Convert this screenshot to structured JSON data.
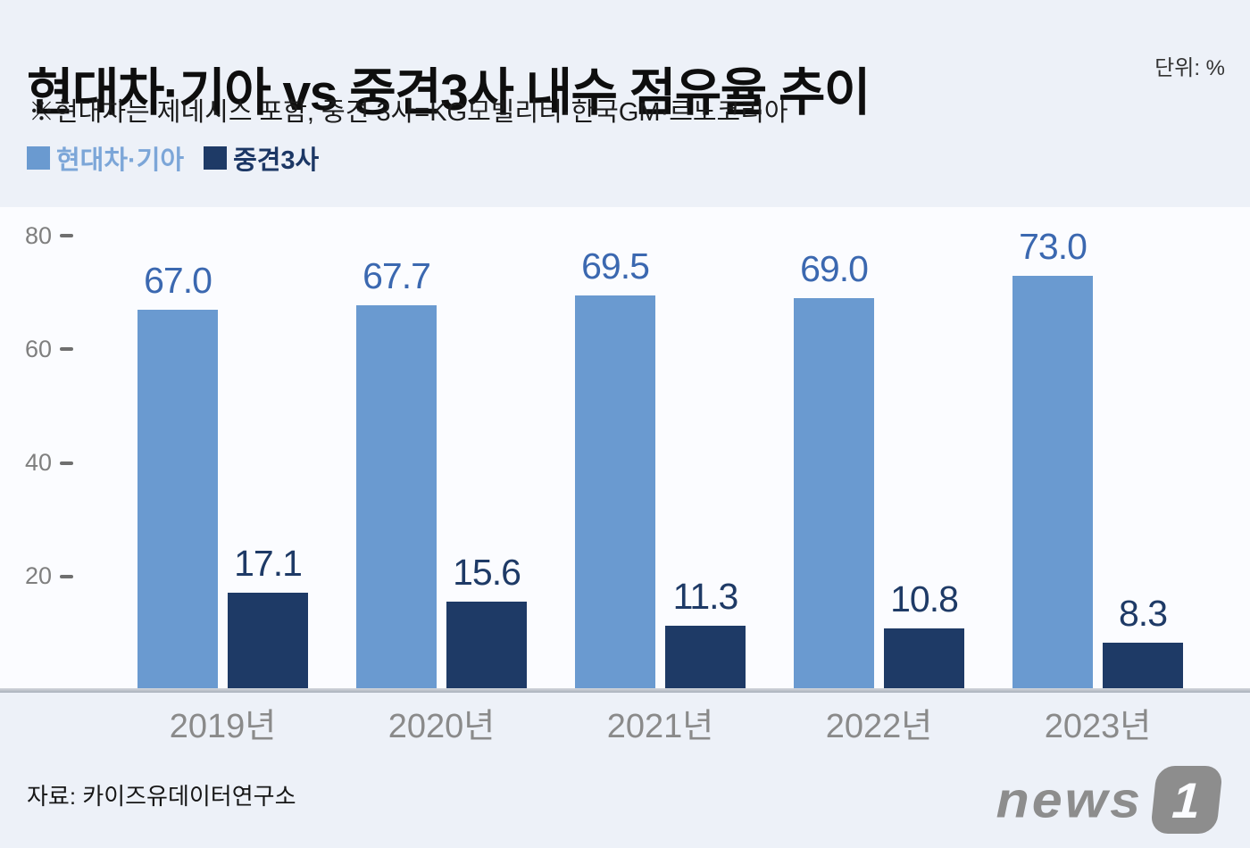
{
  "header": {
    "title": "현대차·기아 vs 중견3사 내수 점유율 추이",
    "unit_label": "단위: %",
    "note": "※현대차는 제네시스 포함, 중견 3사=KG모빌리티·한국GM·르노코리아"
  },
  "legend": {
    "items": [
      {
        "label": "현대차·기아",
        "swatch_color": "#6a9ad0",
        "text_color": "#7ca6d8"
      },
      {
        "label": "중견3사",
        "swatch_color": "#1e3a66",
        "text_color": "#1c3765"
      }
    ]
  },
  "chart_data": {
    "type": "bar",
    "title": "현대차·기아 vs 중견3사 내수 점유율 추이",
    "subtitle": "※현대차는 제네시스 포함, 중견 3사=KG모빌리티·한국GM·르노코리아",
    "unit": "%",
    "categories": [
      "2019년",
      "2020년",
      "2021년",
      "2022년",
      "2023년"
    ],
    "series": [
      {
        "name": "현대차·기아",
        "color": "#6a9ad0",
        "label_color": "#3b68b0",
        "values": [
          67.0,
          67.7,
          69.5,
          69.0,
          73.0
        ]
      },
      {
        "name": "중견3사",
        "color": "#1e3a66",
        "label_color": "#1e3a66",
        "values": [
          17.1,
          15.6,
          11.3,
          10.8,
          8.3
        ]
      }
    ],
    "ylim": [
      0,
      80
    ],
    "yticks": [
      80,
      60,
      40,
      20
    ],
    "grid": false,
    "legend_position": "top-left",
    "value_labels": true
  },
  "footer": {
    "source": "자료: 카이즈유데이터연구소",
    "logo": {
      "text": "news",
      "badge": "1"
    }
  }
}
